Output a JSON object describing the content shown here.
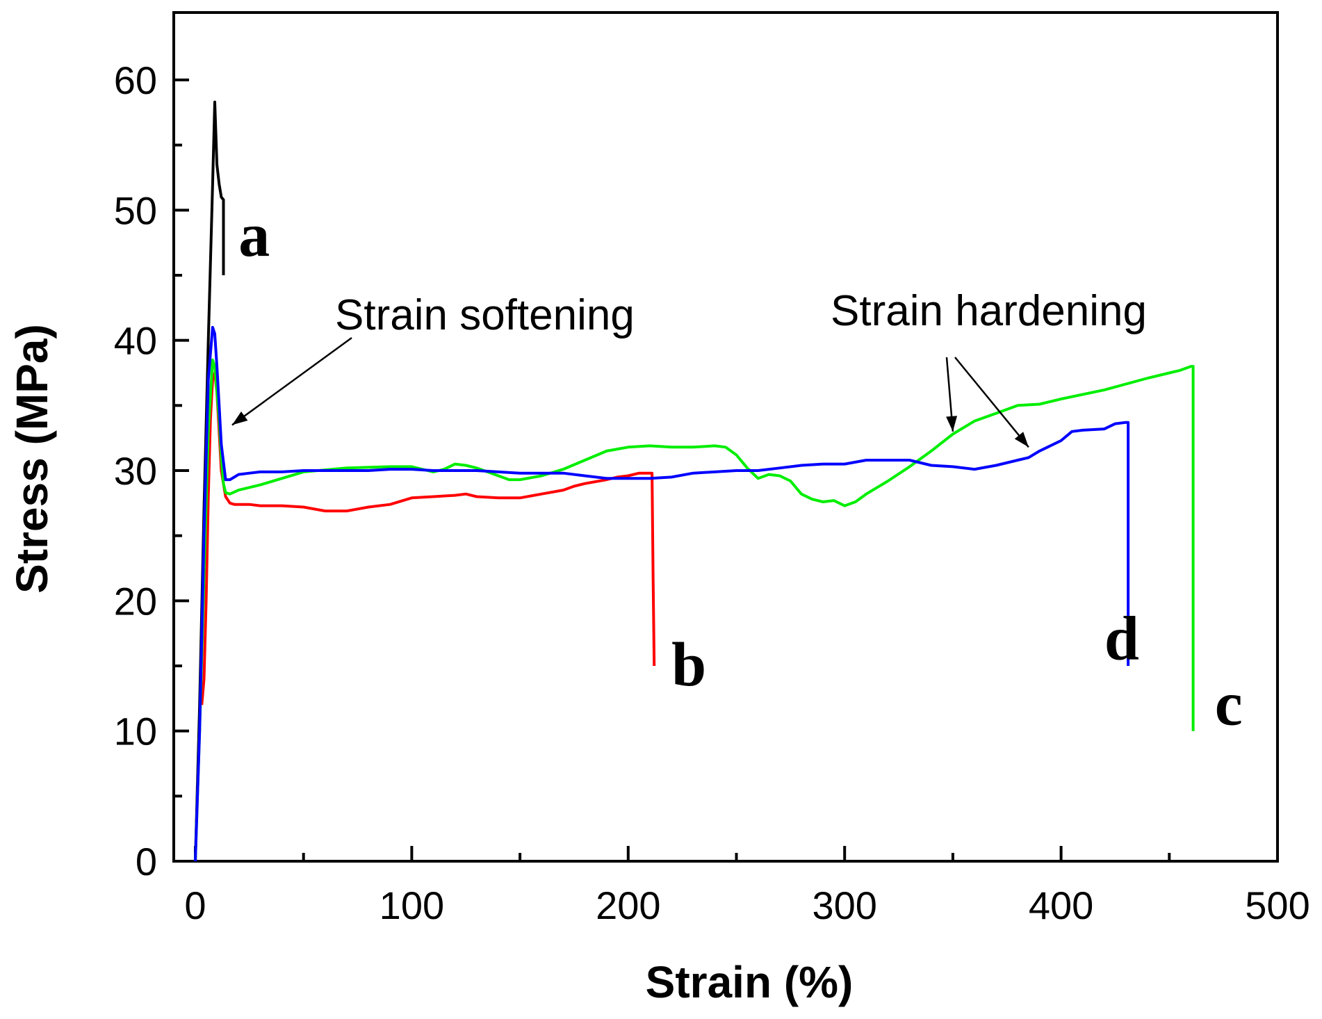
{
  "chart_data": {
    "type": "line",
    "title": "",
    "xlabel": "Strain (%)",
    "ylabel": "Stress (MPa)",
    "xlim": [
      -10,
      500
    ],
    "ylim": [
      -2,
      65
    ],
    "xticks": [
      0,
      100,
      200,
      300,
      400,
      500
    ],
    "yticks": [
      0,
      10,
      20,
      30,
      40,
      50,
      60
    ],
    "grid": false,
    "legend": "none",
    "series": [
      {
        "name": "a",
        "color": "#000000",
        "x": [
          0,
          2,
          4,
          6,
          8,
          9,
          10,
          11,
          12,
          13,
          13
        ],
        "y": [
          0,
          12,
          27,
          40,
          52,
          58.3,
          53.5,
          52,
          51,
          50.8,
          45
        ]
      },
      {
        "name": "b",
        "color": "#ff0000",
        "x": [
          3,
          4,
          5,
          6,
          7,
          8,
          9,
          10,
          11,
          12,
          14,
          16,
          18,
          20,
          25,
          30,
          40,
          50,
          60,
          70,
          80,
          90,
          100,
          110,
          120,
          125,
          130,
          140,
          150,
          160,
          170,
          175,
          180,
          190,
          195,
          200,
          205,
          210,
          211,
          211.5,
          212
        ],
        "y": [
          12,
          14,
          20,
          28,
          34,
          37,
          37.5,
          36,
          33,
          30,
          28,
          27.5,
          27.4,
          27.4,
          27.4,
          27.3,
          27.3,
          27.2,
          26.9,
          26.9,
          27.2,
          27.4,
          27.9,
          28.0,
          28.1,
          28.2,
          28.0,
          27.9,
          27.9,
          28.2,
          28.5,
          28.8,
          29.0,
          29.3,
          29.5,
          29.6,
          29.8,
          29.8,
          29.8,
          22,
          15
        ]
      },
      {
        "name": "c",
        "color": "#00ee00",
        "x": [
          0,
          2,
          4,
          6,
          8,
          9,
          10,
          11,
          12,
          13,
          14,
          16,
          20,
          30,
          50,
          70,
          90,
          100,
          110,
          115,
          120,
          125,
          130,
          140,
          145,
          150,
          160,
          170,
          180,
          190,
          200,
          210,
          220,
          230,
          240,
          245,
          250,
          255,
          260,
          265,
          270,
          275,
          280,
          285,
          290,
          295,
          300,
          305,
          310,
          320,
          330,
          340,
          350,
          360,
          370,
          380,
          390,
          400,
          420,
          440,
          450,
          455,
          460,
          461,
          461,
          461
        ],
        "y": [
          0,
          10,
          22,
          33,
          38.5,
          38,
          36,
          34,
          31,
          29,
          28.3,
          28.2,
          28.5,
          28.9,
          29.9,
          30.2,
          30.3,
          30.3,
          29.9,
          30.1,
          30.5,
          30.4,
          30.2,
          29.6,
          29.3,
          29.3,
          29.6,
          30.1,
          30.8,
          31.5,
          31.8,
          31.9,
          31.8,
          31.8,
          31.9,
          31.8,
          31.2,
          30.2,
          29.4,
          29.7,
          29.6,
          29.2,
          28.2,
          27.8,
          27.6,
          27.7,
          27.3,
          27.6,
          28.2,
          29.2,
          30.3,
          31.5,
          32.8,
          33.8,
          34.4,
          35.0,
          35.1,
          35.5,
          36.2,
          37.1,
          37.5,
          37.7,
          38.0,
          38.0,
          20,
          10
        ]
      },
      {
        "name": "d",
        "color": "#0000ff",
        "x": [
          0,
          2,
          4,
          6,
          8,
          9,
          10,
          11,
          12,
          14,
          16,
          18,
          20,
          25,
          30,
          40,
          50,
          60,
          70,
          80,
          90,
          100,
          110,
          120,
          130,
          140,
          150,
          160,
          170,
          180,
          190,
          200,
          210,
          220,
          230,
          240,
          250,
          260,
          270,
          280,
          290,
          300,
          310,
          320,
          330,
          340,
          350,
          360,
          370,
          380,
          385,
          390,
          400,
          405,
          410,
          420,
          425,
          430,
          431,
          431
        ],
        "y": [
          0,
          10,
          25,
          37,
          41.0,
          40.5,
          38,
          35,
          32,
          29.3,
          29.3,
          29.5,
          29.7,
          29.8,
          29.9,
          29.9,
          30.0,
          30.0,
          30.0,
          30.0,
          30.1,
          30.1,
          30.0,
          30.0,
          30.0,
          29.9,
          29.8,
          29.8,
          29.8,
          29.6,
          29.4,
          29.4,
          29.4,
          29.5,
          29.8,
          29.9,
          30.0,
          30.0,
          30.2,
          30.4,
          30.5,
          30.5,
          30.8,
          30.8,
          30.8,
          30.4,
          30.3,
          30.1,
          30.4,
          30.8,
          31.0,
          31.5,
          32.3,
          33.0,
          33.1,
          33.2,
          33.6,
          33.7,
          33.7,
          15
        ]
      }
    ],
    "annotations": [
      {
        "text": "Strain softening",
        "arrow_to": [
          17,
          33.5
        ]
      },
      {
        "text": "Strain hardening",
        "arrows_to": [
          [
            350,
            33.0
          ],
          [
            385,
            31.8
          ]
        ]
      }
    ],
    "curve_labels": [
      {
        "text": "a",
        "x": 20,
        "y": 46.5
      },
      {
        "text": "b",
        "x": 220,
        "y": 13.5
      },
      {
        "text": "d",
        "x": 420,
        "y": 15.5
      },
      {
        "text": "c",
        "x": 471,
        "y": 10.5
      }
    ]
  }
}
